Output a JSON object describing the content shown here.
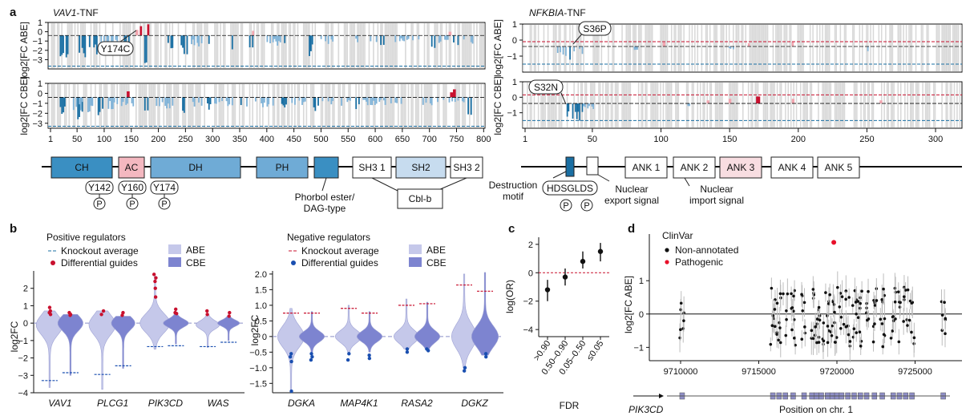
{
  "panel_letters": {
    "a": "a",
    "b": "b",
    "c": "c",
    "d": "d"
  },
  "colors": {
    "dark_blue": "#1a6fa3",
    "light_blue": "#80b3d8",
    "grey": "#d9d9d9",
    "red": "#c8102e",
    "pink": "#f2a6b0",
    "abe_violin": "#c5c8ea",
    "cbe_violin": "#7d84d0"
  },
  "chart_data": [
    {
      "id": "a-vav1",
      "type": "bar",
      "title_italic": "VAV1",
      "title_suffix": "-TNF",
      "rows": [
        {
          "ylabel": "log2[FC ABE]",
          "yticks": [
            "1",
            "0",
            "−1",
            "−2",
            "−3"
          ],
          "knockout_line": -3.3,
          "annotation": "Y174C"
        },
        {
          "ylabel": "log2[FC CBE]",
          "yticks": [
            "1",
            "0",
            "−1",
            "−2",
            "−3"
          ],
          "knockout_line": -2.9,
          "annotation": ""
        }
      ],
      "xticks": [
        "1",
        "50",
        "100",
        "150",
        "200",
        "250",
        "300",
        "350",
        "400",
        "450",
        "500",
        "550",
        "600",
        "650",
        "700",
        "750",
        "800"
      ],
      "domains": [
        {
          "label": "CH",
          "fill": "#3a8fc2"
        },
        {
          "label": "AC",
          "fill": "#f4b8c0"
        },
        {
          "label": "DH",
          "fill": "#6fabd6"
        },
        {
          "label": "PH",
          "fill": "#6fabd6"
        },
        {
          "label": "",
          "fill": "#3a8fc2"
        },
        {
          "label": "SH3 1",
          "fill": "#ffffff"
        },
        {
          "label": "SH2",
          "fill": "#c7dcef"
        },
        {
          "label": "SH3 2",
          "fill": "#ffffff"
        }
      ],
      "phospho_sites": [
        "Y142",
        "Y160",
        "Y174"
      ],
      "phospho_symbol": "P",
      "annotations": [
        "Phorbol ester/",
        "DAG-type",
        "Cbl-b"
      ]
    },
    {
      "id": "a-nfkbia",
      "type": "bar",
      "title_italic": "NFKBIA",
      "title_suffix": "-TNF",
      "rows": [
        {
          "ylabel": "log2[FC ABE]",
          "yticks": [
            "1",
            "0",
            "−1"
          ],
          "knockout_line": -1.1,
          "annotation": "S36P"
        },
        {
          "ylabel": "log2[FC CBE]",
          "yticks": [
            "1",
            "0",
            "−1"
          ],
          "knockout_line": -1.1,
          "annotation": "S32N"
        }
      ],
      "xticks": [
        "1",
        "50",
        "100",
        "150",
        "200",
        "250",
        "300"
      ],
      "domains": [
        {
          "label": "ANK 1",
          "fill": "#ffffff"
        },
        {
          "label": "ANK 2",
          "fill": "#ffffff"
        },
        {
          "label": "ANK 3",
          "fill": "#f8dde1"
        },
        {
          "label": "ANK 4",
          "fill": "#ffffff"
        },
        {
          "label": "ANK 5",
          "fill": "#ffffff"
        }
      ],
      "motif": "HDSGLDS",
      "phospho_symbol": "P",
      "annotations": [
        "Destruction",
        "motif",
        "Nuclear",
        "export signal",
        "Nuclear",
        "import signal"
      ]
    },
    {
      "id": "b-positive",
      "type": "violin",
      "title": "Positive regulators",
      "ylabel": "log2FC",
      "yticks": [
        "2",
        "1",
        "0",
        "−1",
        "−2",
        "−3",
        "−4"
      ],
      "ylim": [
        -4,
        3
      ],
      "legend": [
        "Knockout average",
        "Differential guides",
        "ABE",
        "CBE"
      ],
      "categories": [
        "VAV1",
        "PLCG1",
        "PIK3CD",
        "WAS"
      ],
      "knockout_average": {
        "ABE": [
          -3.3,
          -2.95,
          -1.35,
          -1.35
        ],
        "CBE": [
          -2.85,
          -2.45,
          -1.3,
          -1.1
        ]
      }
    },
    {
      "id": "b-negative",
      "type": "violin",
      "title": "Negative regulators",
      "ylabel": "log2FC",
      "yticks": [
        "2.0",
        "1.5",
        "1.0",
        "0.5",
        "0",
        "−0.5",
        "−1.0",
        "−1.5"
      ],
      "ylim": [
        -1.8,
        2.1
      ],
      "legend": [
        "Knockout average",
        "Differential guides",
        "ABE",
        "CBE"
      ],
      "categories": [
        "DGKA",
        "MAP4K1",
        "RASA2",
        "DGKZ"
      ],
      "knockout_average": {
        "ABE": [
          0.75,
          0.9,
          1.0,
          1.65
        ],
        "CBE": [
          0.75,
          0.75,
          1.05,
          1.45
        ]
      }
    },
    {
      "id": "c",
      "type": "scatter",
      "ylabel": "log(OR)",
      "xlabel": "FDR",
      "yticks": [
        "2",
        "0",
        "−2",
        "−4"
      ],
      "ylim": [
        -4.5,
        2.5
      ],
      "categories": [
        ">0.90",
        "0.50–0.90",
        "0.05–0.50",
        "≤0.05"
      ],
      "values": [
        -1.2,
        -0.3,
        0.8,
        1.5
      ],
      "err_low": [
        -2.0,
        -0.9,
        0.3,
        0.8
      ],
      "err_high": [
        -0.5,
        0.3,
        1.5,
        2.1
      ],
      "ref_line": 0
    },
    {
      "id": "d",
      "type": "scatter",
      "title": "ClinVar",
      "ylabel": "log2[FC ABE]",
      "xlabel": "Position on chr. 1",
      "gene": "PIK3CD",
      "yticks": [
        "1",
        "0",
        "−1"
      ],
      "ylim": [
        -1.4,
        2.4
      ],
      "xticks": [
        "9710000",
        "9715000",
        "9720000",
        "9725000"
      ],
      "xlim": [
        9708000,
        9728000
      ],
      "legend": [
        "Non-annotated",
        "Pathogenic"
      ],
      "pathogenic_point": {
        "x": 9719800,
        "y": 2.15
      }
    }
  ]
}
